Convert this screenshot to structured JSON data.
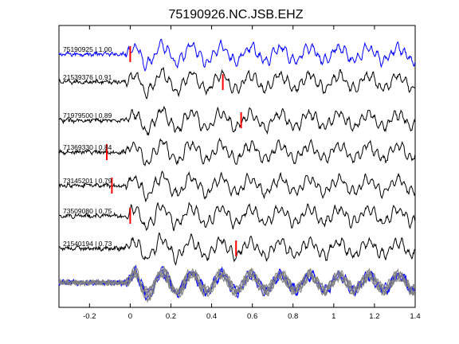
{
  "chart_data": {
    "type": "line",
    "title": "75190926.NC.JSB.EHZ",
    "xlim": [
      -0.35,
      1.4
    ],
    "x_ticks": [
      -0.2,
      0,
      0.2,
      0.4,
      0.6,
      0.8,
      1,
      1.2,
      1.4
    ],
    "x_tick_labels": [
      "-0.2",
      "0",
      "0.2",
      "0.4",
      "0.6",
      "0.8",
      "1",
      "1.2",
      "1.4"
    ],
    "grid": false,
    "traces": [
      {
        "label": "75190925 | 1.00",
        "event_id": "75190925",
        "correlation": 1.0,
        "pick_time": 0.0,
        "color": "#0000ff"
      },
      {
        "label": "21539376 | 0.91",
        "event_id": "21539376",
        "correlation": 0.91,
        "pick_time": 0.455,
        "color": "#000000"
      },
      {
        "label": "71979500 | 0.89",
        "event_id": "71979500",
        "correlation": 0.89,
        "pick_time": 0.545,
        "color": "#000000"
      },
      {
        "label": "71369330 | 0.84",
        "event_id": "71369330",
        "correlation": 0.84,
        "pick_time": -0.115,
        "color": "#000000"
      },
      {
        "label": "73145201 | 0.79",
        "event_id": "73145201",
        "correlation": 0.79,
        "pick_time": -0.09,
        "color": "#000000"
      },
      {
        "label": "73509080 | 0.75",
        "event_id": "73509080",
        "correlation": 0.75,
        "pick_time": 0.0,
        "color": "#000000"
      },
      {
        "label": "21540194 | 0.73",
        "event_id": "21540194",
        "correlation": 0.73,
        "pick_time": 0.52,
        "color": "#000000"
      }
    ],
    "overlay": {
      "description": "stack of all traces",
      "colors": [
        "#0000ff",
        "#808080"
      ]
    },
    "pick_color": "#ff0000"
  }
}
